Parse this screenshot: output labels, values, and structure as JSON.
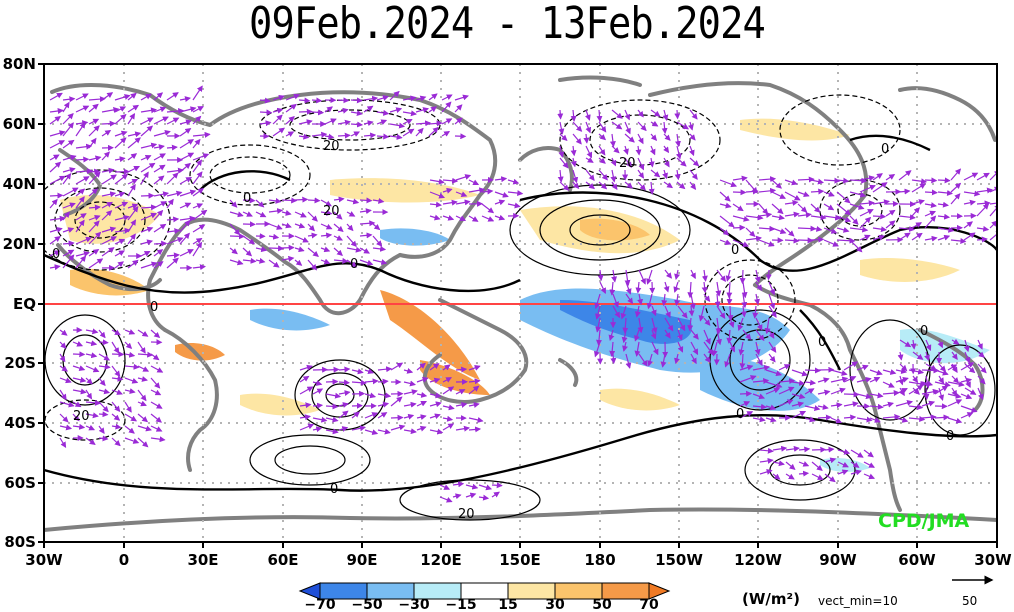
{
  "map": {
    "title": "09Feb.2024 - 13Feb.2024",
    "lat_ticks": [
      "80N",
      "60N",
      "40N",
      "20N",
      "EQ",
      "20S",
      "40S",
      "60S",
      "80S"
    ],
    "lon_ticks": [
      "30W",
      "0",
      "30E",
      "60E",
      "90E",
      "120E",
      "150E",
      "180",
      "150W",
      "120W",
      "90W",
      "60W",
      "30W"
    ],
    "contour_labels": [
      "20",
      "0",
      "0",
      "20",
      "20",
      "0",
      "0",
      "0",
      "0",
      "0",
      "0",
      "20",
      "0",
      "20",
      "0",
      "0"
    ],
    "credit": "CPD/JMA",
    "units": "(W/m²)",
    "vector_min": "vect_min=10",
    "reference_vector": "50",
    "colorbar": {
      "labels": [
        "−70",
        "−50",
        "−30",
        "−15",
        "15",
        "30",
        "50",
        "70"
      ],
      "colors": [
        "#1f4fd8",
        "#3d86e8",
        "#79bdf2",
        "#b7ecf7",
        "#ffffff",
        "#fde6a4",
        "#fbc46c",
        "#f59a48",
        "#f07a24"
      ]
    },
    "colors": {
      "land": "#808080",
      "vector": "#9a2ad6",
      "equator": "#ff4444"
    }
  }
}
